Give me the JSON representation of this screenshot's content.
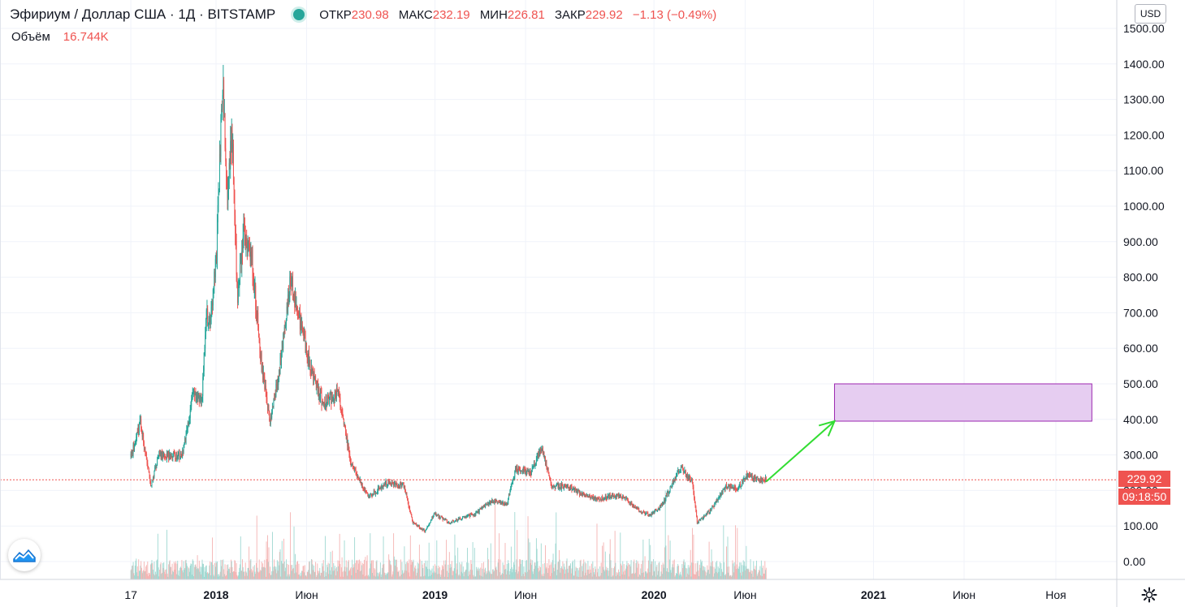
{
  "legend": {
    "symbol": "Эфириум / Доллар США · 1Д · BITSTAMP",
    "open_label": "ОТКР",
    "open": "230.98",
    "high_label": "МАКС",
    "high": "232.19",
    "low_label": "МИН",
    "low": "226.81",
    "close_label": "ЗАКР",
    "close": "229.92",
    "change": "−1.13 (−0.49%)"
  },
  "volume_legend": {
    "label": "Объём",
    "value": "16.744K"
  },
  "currency": "USD",
  "last_price_tag": "229.92",
  "countdown_tag": "09:18:50",
  "colors": {
    "up": "#26a69a",
    "down": "#ef5350",
    "up_volume": "#9fd8d1",
    "down_volume": "#f4b3b2",
    "grid": "#f0f3fa",
    "axis_text": "#131722",
    "price_line": "#ef5350",
    "arrow": "#33dd33",
    "target_fill": "#e6cdf1",
    "target_border": "#9c27b0"
  },
  "icons": {
    "logo": "tradingview-logo-icon",
    "settings": "gear-icon",
    "status": "market-status-dot-icon"
  },
  "chart_data": {
    "type": "candlestick",
    "title": "Эфириум / Доллар США · 1Д · BITSTAMP",
    "ylim": [
      -50,
      1500
    ],
    "y_ticks": [
      "1500.00",
      "1400.00",
      "1300.00",
      "1200.00",
      "1100.00",
      "1000.00",
      "900.00",
      "800.00",
      "700.00",
      "600.00",
      "500.00",
      "400.00",
      "300.00",
      "200.00",
      "100.00",
      "0.00"
    ],
    "y_tick_values": [
      1500,
      1400,
      1300,
      1200,
      1100,
      1000,
      900,
      800,
      700,
      600,
      500,
      400,
      300,
      200,
      100,
      0
    ],
    "x_ticks": [
      {
        "label": "17",
        "date": "2017-08-12"
      },
      {
        "label": "2018",
        "date": "2018-01-01",
        "bold": true
      },
      {
        "label": "Июн",
        "date": "2018-06-01"
      },
      {
        "label": "2019",
        "date": "2019-01-01",
        "bold": true
      },
      {
        "label": "Июн",
        "date": "2019-06-01"
      },
      {
        "label": "2020",
        "date": "2020-01-01",
        "bold": true
      },
      {
        "label": "Июн",
        "date": "2020-06-01"
      },
      {
        "label": "2021",
        "date": "2021-01-01",
        "bold": true
      },
      {
        "label": "Июн",
        "date": "2021-06-01"
      },
      {
        "label": "Ноя",
        "date": "2021-11-01"
      }
    ],
    "price_keypoints": [
      [
        "2017-08-12",
        295
      ],
      [
        "2017-08-28",
        390
      ],
      [
        "2017-09-14",
        215
      ],
      [
        "2017-09-28",
        300
      ],
      [
        "2017-10-20",
        300
      ],
      [
        "2017-11-05",
        295
      ],
      [
        "2017-11-24",
        470
      ],
      [
        "2017-12-08",
        450
      ],
      [
        "2017-12-16",
        700
      ],
      [
        "2017-12-22",
        650
      ],
      [
        "2018-01-02",
        880
      ],
      [
        "2018-01-12",
        1350
      ],
      [
        "2018-01-20",
        1050
      ],
      [
        "2018-01-28",
        1200
      ],
      [
        "2018-02-06",
        730
      ],
      [
        "2018-02-15",
        920
      ],
      [
        "2018-03-01",
        860
      ],
      [
        "2018-03-18",
        550
      ],
      [
        "2018-04-01",
        390
      ],
      [
        "2018-04-15",
        520
      ],
      [
        "2018-05-05",
        790
      ],
      [
        "2018-05-25",
        640
      ],
      [
        "2018-06-12",
        520
      ],
      [
        "2018-06-28",
        445
      ],
      [
        "2018-07-24",
        475
      ],
      [
        "2018-08-14",
        275
      ],
      [
        "2018-09-12",
        180
      ],
      [
        "2018-10-10",
        220
      ],
      [
        "2018-11-10",
        215
      ],
      [
        "2018-11-25",
        110
      ],
      [
        "2018-12-15",
        85
      ],
      [
        "2018-12-31",
        135
      ],
      [
        "2019-01-25",
        110
      ],
      [
        "2019-02-10",
        120
      ],
      [
        "2019-03-10",
        135
      ],
      [
        "2019-04-05",
        170
      ],
      [
        "2019-05-01",
        160
      ],
      [
        "2019-05-15",
        260
      ],
      [
        "2019-06-10",
        250
      ],
      [
        "2019-06-27",
        320
      ],
      [
        "2019-07-15",
        215
      ],
      [
        "2019-08-10",
        210
      ],
      [
        "2019-09-15",
        180
      ],
      [
        "2019-10-01",
        175
      ],
      [
        "2019-10-25",
        185
      ],
      [
        "2019-11-10",
        185
      ],
      [
        "2019-12-10",
        140
      ],
      [
        "2019-12-25",
        130
      ],
      [
        "2020-01-15",
        160
      ],
      [
        "2020-02-14",
        265
      ],
      [
        "2020-03-05",
        225
      ],
      [
        "2020-03-13",
        110
      ],
      [
        "2020-04-05",
        145
      ],
      [
        "2020-04-30",
        210
      ],
      [
        "2020-05-20",
        205
      ],
      [
        "2020-06-05",
        245
      ],
      [
        "2020-06-20",
        230
      ],
      [
        "2020-07-01",
        228
      ],
      [
        "2020-07-06",
        229.92
      ]
    ],
    "last_close": 229.92,
    "last_date": "2020-07-06",
    "arrow": {
      "from": [
        "2020-07-06",
        225
      ],
      "to": [
        "2020-10-28",
        395
      ]
    },
    "target_zone": {
      "from": "2020-10-28",
      "to": "2021-12-31",
      "low": 395,
      "high": 500
    }
  }
}
